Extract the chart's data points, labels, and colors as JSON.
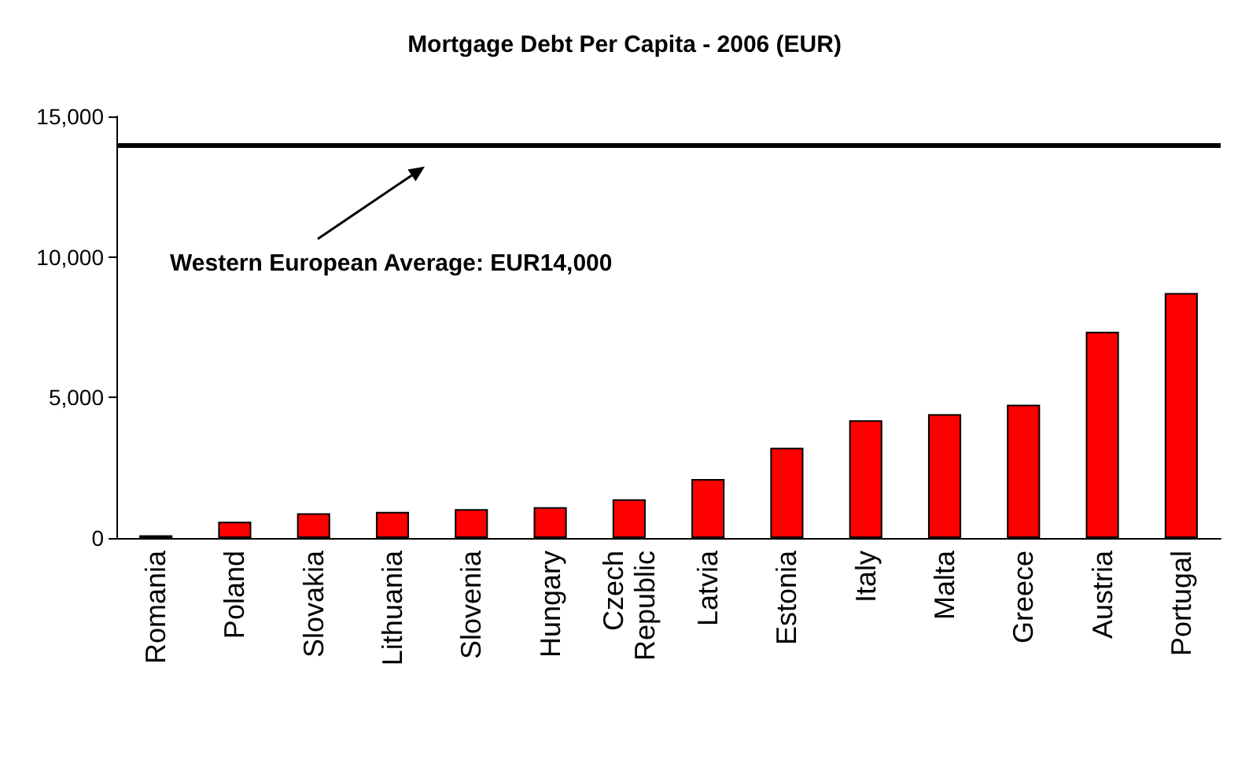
{
  "chart_data": {
    "type": "bar",
    "title": "Mortgage Debt Per Capita - 2006 (EUR)",
    "categories": [
      "Romania",
      "Poland",
      "Slovakia",
      "Lithuania",
      "Slovenia",
      "Hungary",
      "Czech Republic",
      "Latvia",
      "Estonia",
      "Italy",
      "Malta",
      "Greece",
      "Austria",
      "Portugal"
    ],
    "values": [
      100,
      580,
      880,
      930,
      1030,
      1100,
      1380,
      2100,
      3210,
      4190,
      4410,
      4740,
      7340,
      8720
    ],
    "color": "#ff0000",
    "ylim": [
      0,
      15000
    ],
    "yticks": [
      {
        "value": 0,
        "label": "0"
      },
      {
        "value": 5000,
        "label": "5,000"
      },
      {
        "value": 10000,
        "label": "10,000"
      },
      {
        "value": 15000,
        "label": "15,000"
      }
    ],
    "ref_lines": [
      {
        "axis": "y",
        "value": 14000,
        "label": "Western European Average: EUR14,000",
        "color": "#000000",
        "line_style": "solid"
      }
    ],
    "grid": false
  }
}
